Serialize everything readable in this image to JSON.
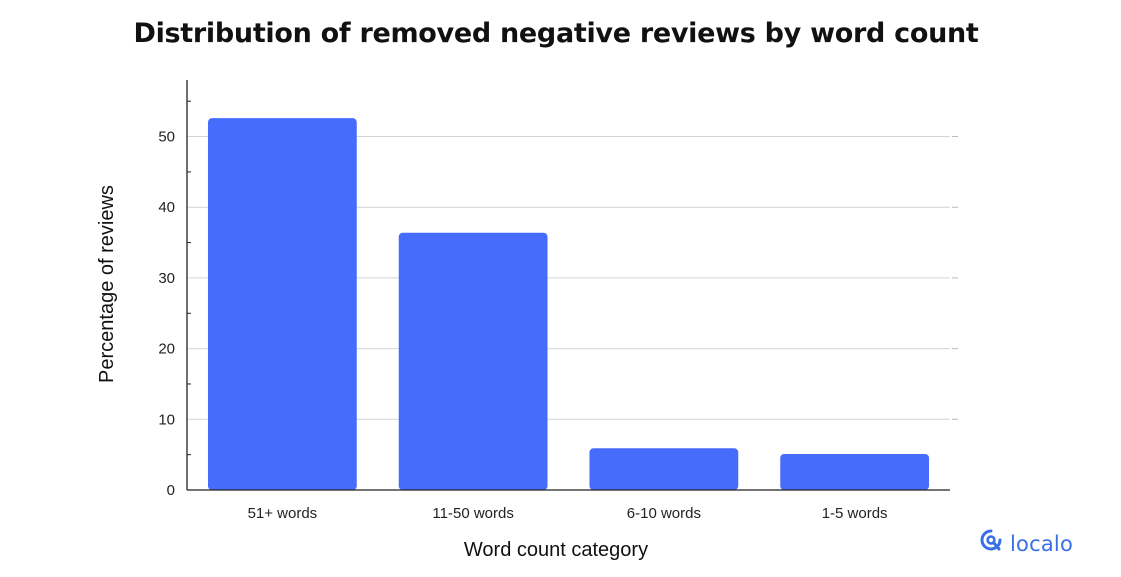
{
  "chart_data": {
    "type": "bar",
    "title": "Distribution of removed negative reviews by word count",
    "xlabel": "Word count category",
    "ylabel": "Percentage of reviews",
    "categories": [
      "51+ words",
      "11-50 words",
      "6-10 words",
      "1-5 words"
    ],
    "values": [
      52.6,
      36.4,
      5.9,
      5.1
    ],
    "ylim": [
      0,
      58
    ],
    "yticks": [
      0,
      10,
      20,
      30,
      40,
      50
    ],
    "grid": true,
    "bar_color": "#466cfc"
  },
  "brand": {
    "name": "localo",
    "icon": "localo-logo-icon",
    "color": "#3a6fe8"
  }
}
